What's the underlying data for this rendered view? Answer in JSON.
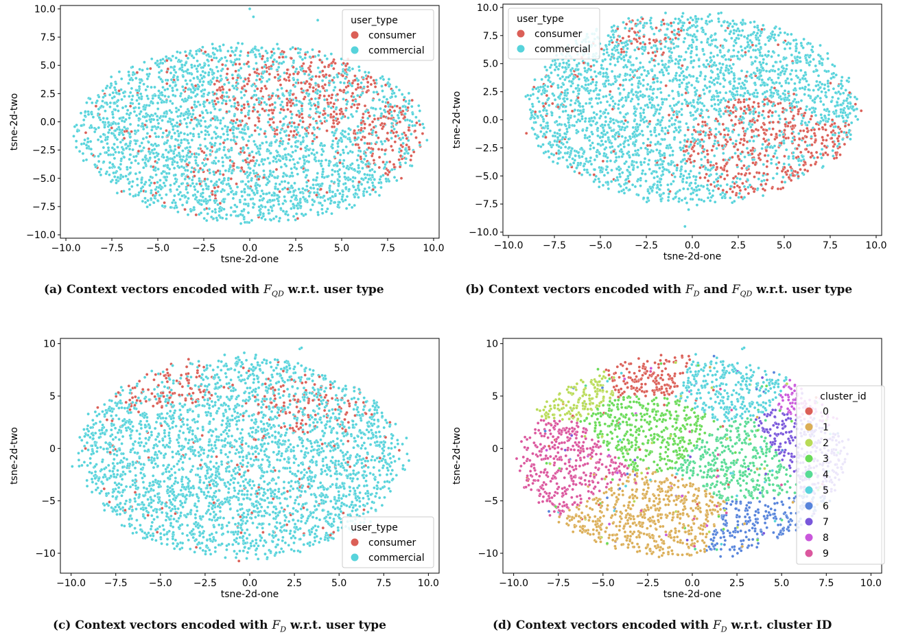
{
  "figure": {
    "captions": [
      {
        "label": "(a)",
        "pre": "Context vectors encoded with ",
        "f1": "F",
        "f1sub": "QD",
        "mid": "",
        "f2": "",
        "f2sub": "",
        "post": " w.r.t. user type"
      },
      {
        "label": "(b)",
        "pre": "Context vectors encoded with ",
        "f1": "F",
        "f1sub": "D",
        "mid": " and ",
        "f2": "F",
        "f2sub": "QD",
        "post": " w.r.t. user type"
      },
      {
        "label": "(c)",
        "pre": "Context vectors encoded with ",
        "f1": "F",
        "f1sub": "D",
        "mid": "",
        "f2": "",
        "f2sub": "",
        "post": " w.r.t. user type"
      },
      {
        "label": "(d)",
        "pre": "Context vectors encoded with ",
        "f1": "F",
        "f1sub": "D",
        "mid": "",
        "f2": "",
        "f2sub": "",
        "post": " w.r.t. cluster ID"
      }
    ]
  },
  "chart_data": [
    {
      "type": "scatter",
      "title": "",
      "xlabel": "tsne-2d-one",
      "ylabel": "tsne-2d-two",
      "xlim": [
        -10.3,
        10.3
      ],
      "ylim": [
        -10.3,
        10.3
      ],
      "xticks": [
        -10.0,
        -7.5,
        -5.0,
        -2.5,
        0.0,
        2.5,
        5.0,
        7.5,
        10.0
      ],
      "yticks": [
        -10.0,
        -7.5,
        -5.0,
        -2.5,
        0.0,
        2.5,
        5.0,
        7.5,
        10.0
      ],
      "tick_decimals": 1,
      "legend": {
        "title": "user_type",
        "position": "top-right"
      },
      "series": [
        {
          "name": "consumer",
          "color": "#db5f57"
        },
        {
          "name": "commercial",
          "color": "#57d3db"
        }
      ],
      "shape": {
        "cx": 0.0,
        "cy": -1.0,
        "rx": 9.8,
        "ry": 8.2
      },
      "regions": [
        {
          "series": 0,
          "cx": 2.5,
          "cy": 2.5,
          "rx": 4.5,
          "ry": 4.0,
          "share": 0.45
        },
        {
          "series": 0,
          "cx": 7.5,
          "cy": -1.5,
          "rx": 2.0,
          "ry": 3.0,
          "share": 0.5
        },
        {
          "series": 0,
          "cx": -1.5,
          "cy": -3.5,
          "rx": 2.0,
          "ry": 2.0,
          "share": 0.2
        }
      ],
      "base_series": 1,
      "base_share": 0.05,
      "outliers": [
        [
          0.0,
          10.0
        ],
        [
          0.2,
          9.3
        ],
        [
          3.7,
          9.0
        ]
      ]
    },
    {
      "type": "scatter",
      "title": "",
      "xlabel": "tsne-2d-one",
      "ylabel": "tsne-2d-two",
      "xlim": [
        -10.3,
        10.3
      ],
      "ylim": [
        -10.3,
        10.3
      ],
      "xticks": [
        -10.0,
        -7.5,
        -5.0,
        -2.5,
        0.0,
        2.5,
        5.0,
        7.5,
        10.0
      ],
      "yticks": [
        -10.0,
        -7.5,
        -5.0,
        -2.5,
        0.0,
        2.5,
        5.0,
        7.5,
        10.0
      ],
      "tick_decimals": 1,
      "legend": {
        "title": "user_type",
        "position": "top-left"
      },
      "series": [
        {
          "name": "consumer",
          "color": "#db5f57"
        },
        {
          "name": "commercial",
          "color": "#57d3db"
        }
      ],
      "shape": {
        "cx": 0.0,
        "cy": 1.0,
        "rx": 9.4,
        "ry": 8.8
      },
      "regions": [
        {
          "series": 0,
          "cx": 3.5,
          "cy": -2.5,
          "rx": 4.0,
          "ry": 4.5,
          "share": 0.55
        },
        {
          "series": 0,
          "cx": -2.5,
          "cy": 7.5,
          "rx": 2.0,
          "ry": 2.0,
          "share": 0.3
        },
        {
          "series": 0,
          "cx": 7.5,
          "cy": -3.0,
          "rx": 2.0,
          "ry": 3.0,
          "share": 0.4
        }
      ],
      "base_series": 1,
      "base_share": 0.04,
      "outliers": [
        [
          -0.4,
          -9.5
        ],
        [
          -0.2,
          -8.0
        ],
        [
          -0.3,
          -7.4
        ]
      ]
    },
    {
      "type": "scatter",
      "title": "",
      "xlabel": "tsne-2d-one",
      "ylabel": "tsne-2d-two",
      "xlim": [
        -10.6,
        10.6
      ],
      "ylim": [
        -11.9,
        10.5
      ],
      "xticks": [
        -10.0,
        -7.5,
        -5.0,
        -2.5,
        0.0,
        2.5,
        5.0,
        7.5,
        10.0
      ],
      "yticks": [
        -10,
        -5,
        0,
        5,
        10
      ],
      "tick_decimals": 1,
      "ytick_decimals": 0,
      "legend": {
        "title": "user_type",
        "position": "bottom-right"
      },
      "series": [
        {
          "name": "consumer",
          "color": "#db5f57"
        },
        {
          "name": "commercial",
          "color": "#57d3db"
        }
      ],
      "shape": {
        "cx": -0.5,
        "cy": -0.8,
        "rx": 9.5,
        "ry": 10.0
      },
      "regions": [
        {
          "series": 0,
          "cx": -5.0,
          "cy": 6.5,
          "rx": 3.0,
          "ry": 3.0,
          "share": 0.5
        },
        {
          "series": 0,
          "cx": 3.5,
          "cy": 4.0,
          "rx": 3.5,
          "ry": 2.5,
          "share": 0.3
        }
      ],
      "base_series": 1,
      "base_share": 0.05,
      "outliers": [
        [
          2.8,
          9.5
        ],
        [
          2.9,
          9.6
        ]
      ]
    },
    {
      "type": "scatter",
      "title": "",
      "xlabel": "tsne-2d-one",
      "ylabel": "tsne-2d-two",
      "xlim": [
        -10.6,
        10.6
      ],
      "ylim": [
        -11.9,
        10.5
      ],
      "xticks": [
        -10.0,
        -7.5,
        -5.0,
        -2.5,
        0.0,
        2.5,
        5.0,
        7.5,
        10.0
      ],
      "yticks": [
        -10,
        -5,
        0,
        5,
        10
      ],
      "tick_decimals": 1,
      "ytick_decimals": 0,
      "legend": {
        "title": "cluster_id",
        "position": "center-right"
      },
      "series": [
        {
          "name": "0",
          "color": "#db5f57"
        },
        {
          "name": "1",
          "color": "#dbae57"
        },
        {
          "name": "2",
          "color": "#b9db57"
        },
        {
          "name": "3",
          "color": "#69db57"
        },
        {
          "name": "4",
          "color": "#57db94"
        },
        {
          "name": "5",
          "color": "#57d3db"
        },
        {
          "name": "6",
          "color": "#5784db"
        },
        {
          "name": "7",
          "color": "#7957db"
        },
        {
          "name": "8",
          "color": "#c957db"
        },
        {
          "name": "9",
          "color": "#db579e"
        }
      ],
      "shape": {
        "cx": -0.5,
        "cy": -0.8,
        "rx": 9.5,
        "ry": 10.0
      },
      "cluster_centers": [
        [
          -2.5,
          7.5
        ],
        [
          -2.0,
          -7.0
        ],
        [
          -7.0,
          6.5
        ],
        [
          -2.5,
          2.5
        ],
        [
          3.5,
          -1.0
        ],
        [
          1.5,
          6.5
        ],
        [
          4.5,
          -8.5
        ],
        [
          6.0,
          0.0
        ],
        [
          8.5,
          4.5
        ],
        [
          -8.0,
          -1.0
        ]
      ],
      "outliers": [
        [
          2.8,
          9.5
        ],
        [
          2.9,
          9.6
        ]
      ]
    }
  ]
}
